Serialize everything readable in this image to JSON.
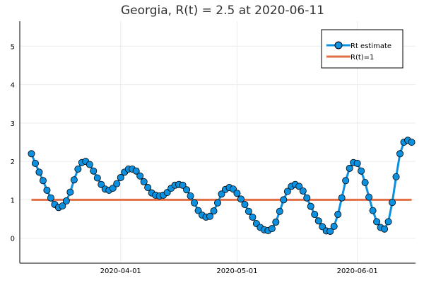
{
  "chart_data": {
    "type": "line",
    "title": "Georgia, R(t) = 2.5 at 2020-06-11",
    "xlabel": "",
    "ylabel": "",
    "x_start": "2020-03-09",
    "x_end": "2020-06-11",
    "xlim": [
      "2020-03-06",
      "2020-06-16"
    ],
    "ylim": [
      -0.65,
      5.65
    ],
    "x_ticks": [
      "2020-04-01",
      "2020-05-01",
      "2020-06-01"
    ],
    "y_ticks": [
      0,
      1,
      2,
      3,
      4,
      5
    ],
    "grid": true,
    "legend_position": "top-right",
    "series": [
      {
        "name": "Rt estimate",
        "color": "#0b91e0",
        "marker": "circle",
        "values": [
          2.2,
          1.95,
          1.72,
          1.5,
          1.25,
          1.05,
          0.88,
          0.8,
          0.84,
          0.97,
          1.2,
          1.52,
          1.8,
          1.97,
          2.0,
          1.92,
          1.75,
          1.57,
          1.4,
          1.28,
          1.25,
          1.3,
          1.42,
          1.58,
          1.72,
          1.8,
          1.8,
          1.75,
          1.62,
          1.47,
          1.32,
          1.18,
          1.12,
          1.1,
          1.12,
          1.19,
          1.3,
          1.38,
          1.4,
          1.38,
          1.26,
          1.1,
          0.92,
          0.72,
          0.6,
          0.55,
          0.57,
          0.71,
          0.92,
          1.15,
          1.27,
          1.32,
          1.28,
          1.17,
          1.02,
          0.88,
          0.7,
          0.55,
          0.38,
          0.28,
          0.22,
          0.2,
          0.25,
          0.42,
          0.7,
          1.0,
          1.22,
          1.35,
          1.4,
          1.35,
          1.23,
          1.05,
          0.83,
          0.62,
          0.45,
          0.3,
          0.19,
          0.18,
          0.31,
          0.62,
          1.05,
          1.5,
          1.82,
          1.97,
          1.95,
          1.75,
          1.45,
          1.07,
          0.72,
          0.43,
          0.28,
          0.24,
          0.43,
          0.93,
          1.6,
          2.2,
          2.5,
          2.55,
          2.5
        ]
      },
      {
        "name": "R(t)=1",
        "color": "#e26f46",
        "value": 1
      }
    ]
  }
}
